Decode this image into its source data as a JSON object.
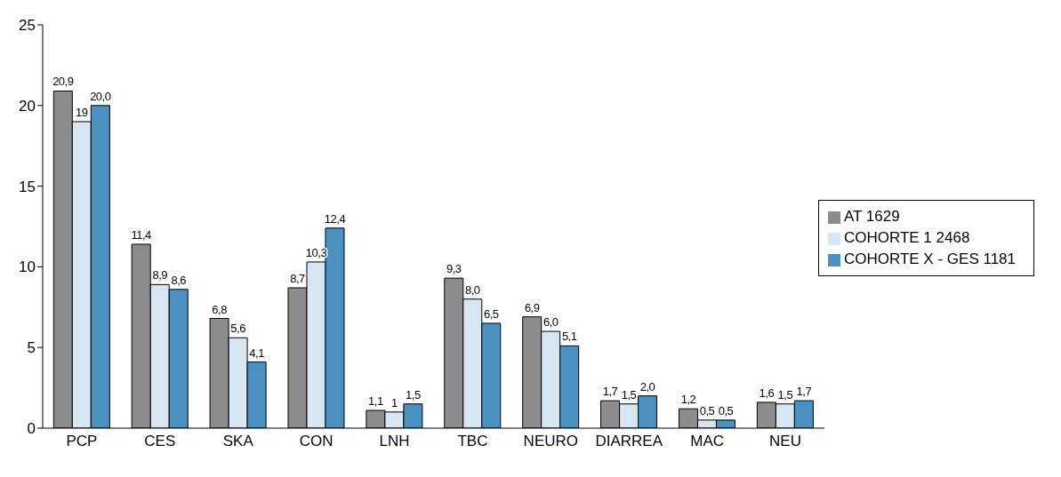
{
  "chart_data": {
    "type": "bar",
    "categories": [
      "PCP",
      "CES",
      "SKA",
      "CON",
      "LNH",
      "TBC",
      "NEURO",
      "DIARREA",
      "MAC",
      "NEU"
    ],
    "series": [
      {
        "name": "AT 1629",
        "color": "#8c8c8c",
        "values": [
          20.9,
          11.4,
          6.8,
          8.7,
          1.1,
          9.3,
          6.9,
          1.7,
          1.2,
          1.6
        ],
        "value_labels": [
          "20,9",
          "11,4",
          "6,8",
          "8,7",
          "1,1",
          "9,3",
          "6,9",
          "1,7",
          "1,2",
          "1,6"
        ]
      },
      {
        "name": "COHORTE 1 2468",
        "color": "#d6e6f2",
        "values": [
          19,
          8.9,
          5.6,
          10.3,
          1,
          8.0,
          6.0,
          1.5,
          0.5,
          1.5
        ],
        "value_labels": [
          "19",
          "8,9",
          "5,6",
          "10,3",
          "1",
          "8,0",
          "6,0",
          "1,5",
          "0,5",
          "1,5"
        ]
      },
      {
        "name": "COHORTE X - GES 1181",
        "color": "#4a90c0",
        "values": [
          20.0,
          8.6,
          4.1,
          12.4,
          1.5,
          6.5,
          5.1,
          2.0,
          0.5,
          1.7
        ],
        "value_labels": [
          "20,0",
          "8,6",
          "4,1",
          "12,4",
          "1,5",
          "6,5",
          "5,1",
          "2,0",
          "0,5",
          "1,7"
        ]
      }
    ],
    "ylim": [
      0,
      25
    ],
    "yticks": [
      0,
      5,
      10,
      15,
      20,
      25
    ],
    "grid": false,
    "legend": "right"
  }
}
